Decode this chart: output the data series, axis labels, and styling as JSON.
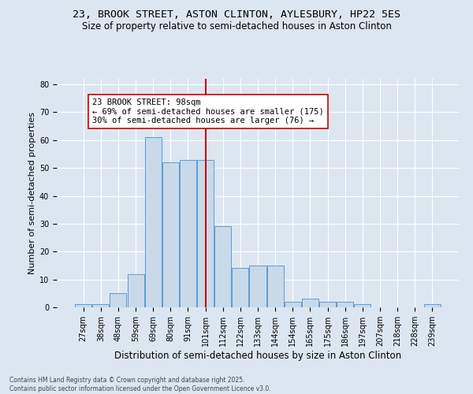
{
  "title_line1": "23, BROOK STREET, ASTON CLINTON, AYLESBURY, HP22 5ES",
  "title_line2": "Size of property relative to semi-detached houses in Aston Clinton",
  "xlabel": "Distribution of semi-detached houses by size in Aston Clinton",
  "ylabel": "Number of semi-detached properties",
  "footer_line1": "Contains HM Land Registry data © Crown copyright and database right 2025.",
  "footer_line2": "Contains public sector information licensed under the Open Government Licence v3.0.",
  "bin_labels": [
    "27sqm",
    "38sqm",
    "48sqm",
    "59sqm",
    "69sqm",
    "80sqm",
    "91sqm",
    "101sqm",
    "112sqm",
    "122sqm",
    "133sqm",
    "144sqm",
    "154sqm",
    "165sqm",
    "175sqm",
    "186sqm",
    "197sqm",
    "207sqm",
    "218sqm",
    "228sqm",
    "239sqm"
  ],
  "bar_values": [
    1,
    1,
    5,
    12,
    61,
    52,
    53,
    53,
    29,
    14,
    15,
    15,
    2,
    3,
    2,
    2,
    1,
    0,
    0,
    0,
    1
  ],
  "bar_color": "#c8d9ea",
  "bar_edge_color": "#5b9bd5",
  "vline_color": "#cc0000",
  "vline_x": 7.0,
  "annotation_title": "23 BROOK STREET: 98sqm",
  "annotation_line2": "← 69% of semi-detached houses are smaller (175)",
  "annotation_line3": "30% of semi-detached houses are larger (76) →",
  "annotation_box_color": "#ffffff",
  "annotation_box_edge": "#cc0000",
  "background_color": "#dce6f1",
  "plot_bg_color": "#dce6f1",
  "ylim": [
    0,
    82
  ],
  "title_fontsize": 9.5,
  "subtitle_fontsize": 8.5,
  "ylabel_fontsize": 8,
  "xlabel_fontsize": 8.5,
  "tick_fontsize": 7,
  "annotation_fontsize": 7.5,
  "footer_fontsize": 5.5
}
